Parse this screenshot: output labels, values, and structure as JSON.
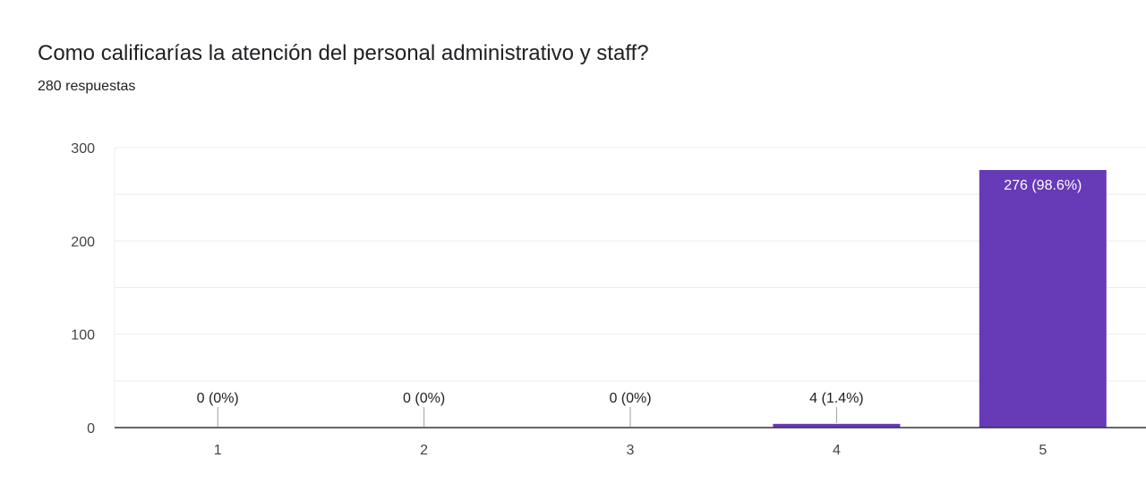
{
  "question": {
    "title": "Como calificarías la atención del personal administrativo y staff?",
    "responses": "280 respuestas"
  },
  "colors": {
    "bar": "#673ab7",
    "gridline": "#ececec",
    "baseline": "#333333",
    "text": "#202124",
    "bar_label_inside": "#ffffff",
    "leader_line": "#9e9e9e"
  },
  "chart_data": {
    "type": "bar",
    "categories": [
      "1",
      "2",
      "3",
      "4",
      "5"
    ],
    "values": [
      0,
      0,
      0,
      4,
      276
    ],
    "data_labels": [
      "0 (0%)",
      "0 (0%)",
      "0 (0%)",
      "4 (1.4%)",
      "276 (98.6%)"
    ],
    "ylim": [
      0,
      300
    ],
    "yticks": [
      0,
      100,
      200,
      300
    ],
    "ytick_labels": [
      "0",
      "100",
      "200",
      "300"
    ],
    "minor_gridlines": [
      50,
      150,
      250
    ],
    "grid": true,
    "legend": "none"
  }
}
